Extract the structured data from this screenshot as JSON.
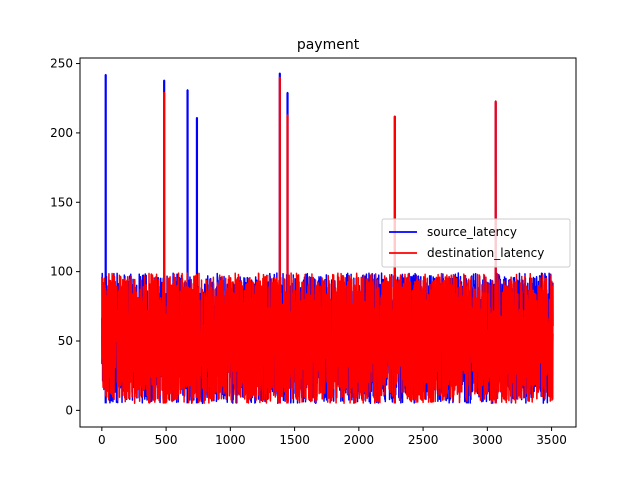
{
  "chart_data": {
    "type": "line",
    "title": "payment",
    "xlabel": "",
    "ylabel": "",
    "xlim": [
      -170,
      3690
    ],
    "ylim": [
      -12,
      254
    ],
    "x_ticks": [
      0,
      500,
      1000,
      1500,
      2000,
      2500,
      3000,
      3500
    ],
    "y_ticks": [
      0,
      50,
      100,
      150,
      200,
      250
    ],
    "x_tick_labels": [
      "0",
      "500",
      "1000",
      "1500",
      "2000",
      "2500",
      "3000",
      "3500"
    ],
    "y_tick_labels": [
      "0",
      "50",
      "100",
      "150",
      "200",
      "250"
    ],
    "grid": false,
    "legend_position": "center-right",
    "n_points": 3512,
    "baseline_low": 5,
    "baseline_high": 99,
    "series": [
      {
        "name": "source_latency",
        "color": "#0000ff",
        "spikes": [
          {
            "x": 30,
            "y": 242
          },
          {
            "x": 485,
            "y": 238
          },
          {
            "x": 667,
            "y": 231
          },
          {
            "x": 740,
            "y": 211
          },
          {
            "x": 1385,
            "y": 243
          },
          {
            "x": 1445,
            "y": 229
          },
          {
            "x": 2280,
            "y": 212
          },
          {
            "x": 3065,
            "y": 222
          }
        ]
      },
      {
        "name": "destination_latency",
        "color": "#ff0000",
        "spikes": [
          {
            "x": 485,
            "y": 229
          },
          {
            "x": 1385,
            "y": 240
          },
          {
            "x": 1445,
            "y": 213
          },
          {
            "x": 2280,
            "y": 212
          },
          {
            "x": 3065,
            "y": 223
          }
        ]
      }
    ]
  }
}
